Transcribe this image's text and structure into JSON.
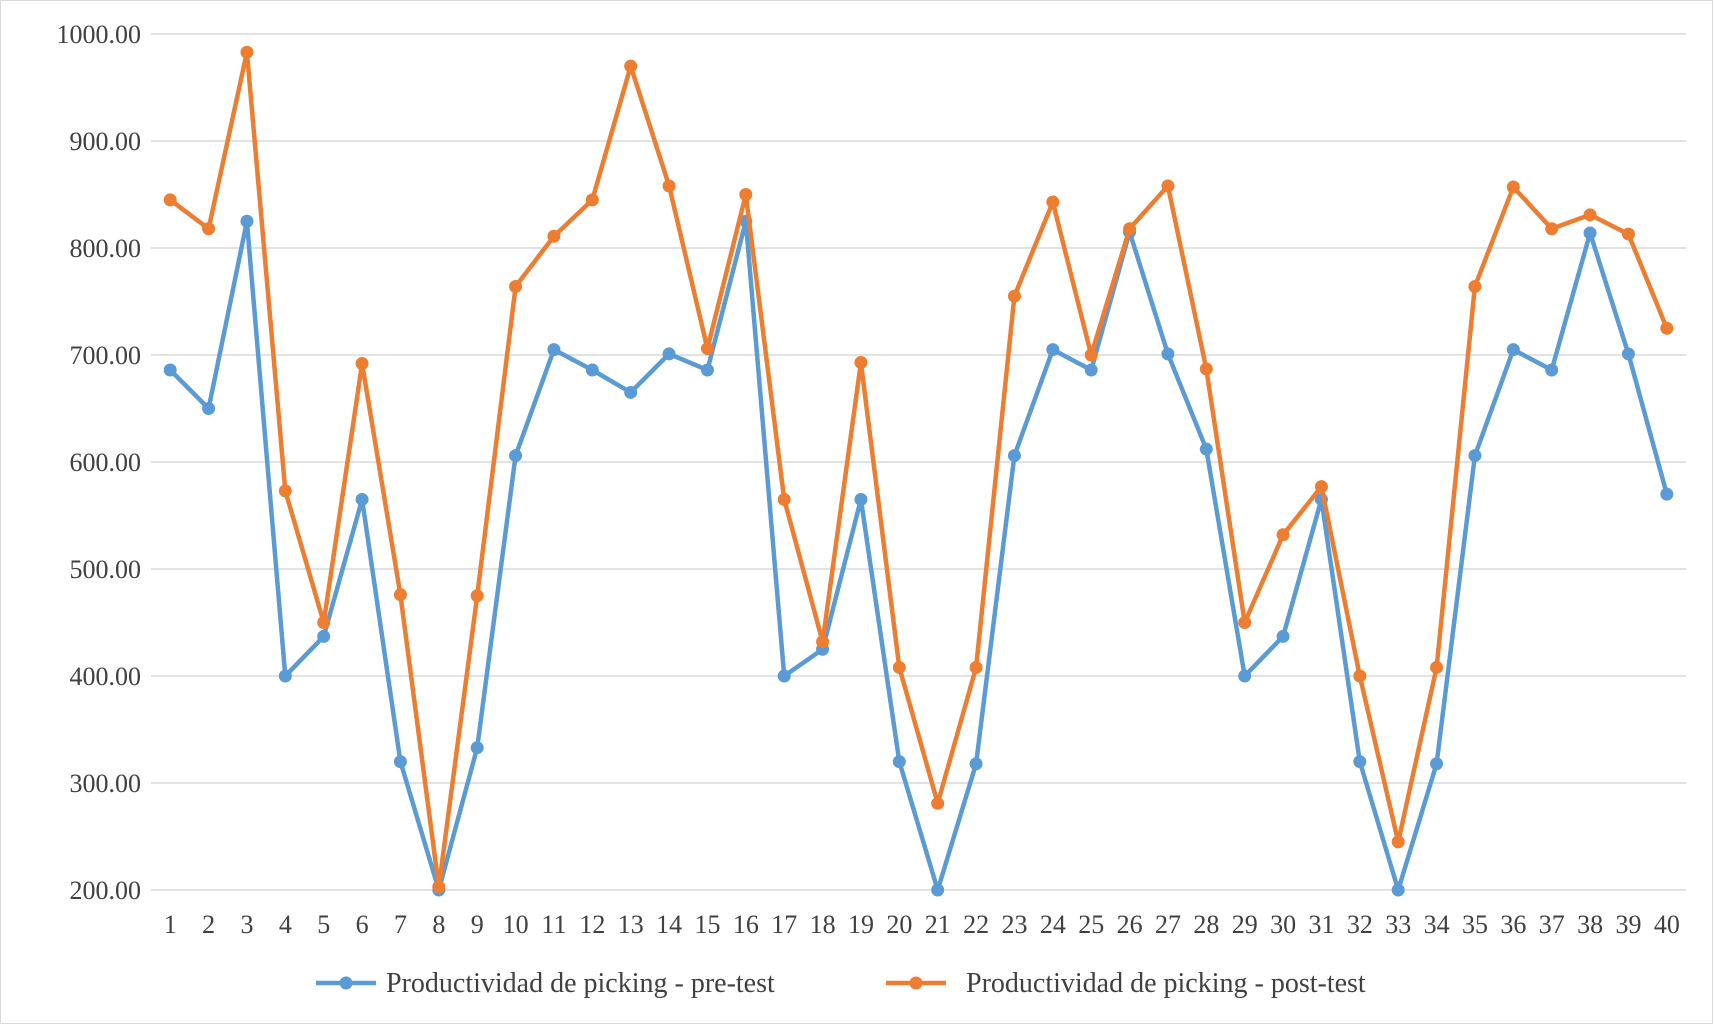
{
  "chart_data": {
    "type": "line",
    "title": "",
    "xlabel": "",
    "ylabel": "",
    "ylim": [
      200,
      1000
    ],
    "yticks": [
      "1000.00",
      "900.00",
      "800.00",
      "700.00",
      "600.00",
      "500.00",
      "400.00",
      "300.00",
      "200.00"
    ],
    "grid": true,
    "legend_position": "bottom",
    "x_tick_labels": [
      "1",
      "2",
      "3",
      "4",
      "5",
      "6",
      "7",
      "8",
      "9",
      "10",
      "11",
      "12",
      "13",
      "14",
      "15",
      "16",
      "17",
      "18",
      "19",
      "20",
      "21",
      "22",
      "23",
      "24",
      "25",
      "26",
      "27",
      "28",
      "29",
      "30",
      "31",
      "32",
      "33",
      "34",
      "35",
      "36",
      "37",
      "38",
      "39",
      "40"
    ],
    "point_count": 40,
    "series": [
      {
        "name": "Productividad de picking - pre-test",
        "color": "#5b9bd5",
        "values": [
          686,
          650,
          825,
          400,
          437,
          565,
          320,
          200,
          333,
          606,
          705,
          686,
          665,
          701,
          686,
          825,
          400,
          425,
          565,
          320,
          200,
          318,
          606,
          705,
          686,
          815,
          701,
          612,
          400,
          437,
          565,
          320,
          200,
          318,
          606,
          705,
          686,
          814,
          701,
          570
        ]
      },
      {
        "name": "Productividad de picking - post-test",
        "color": "#ed7d31",
        "values": [
          845,
          818,
          983,
          573,
          450,
          692,
          476,
          203,
          475,
          764,
          811,
          845,
          970,
          858,
          706,
          850,
          565,
          432,
          693,
          408,
          281,
          408,
          755,
          843,
          700,
          818,
          858,
          687,
          450,
          532,
          577,
          400,
          245,
          408,
          764,
          857,
          818,
          831,
          813,
          725
        ]
      }
    ]
  }
}
